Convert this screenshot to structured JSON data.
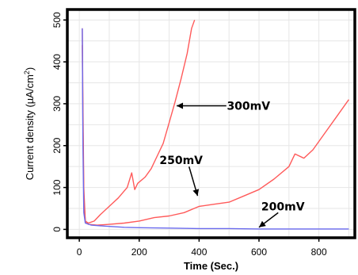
{
  "chart_data": {
    "type": "line",
    "title": "",
    "xlabel": "Time (Sec.)",
    "ylabel_main": "Current density (µA/cm",
    "ylabel_sup": "2",
    "ylabel_close": ")",
    "xlim": [
      -40,
      920
    ],
    "ylim": [
      -20,
      525
    ],
    "xticks": [
      0,
      200,
      400,
      600,
      800
    ],
    "yticks": [
      0,
      100,
      200,
      300,
      400,
      500
    ],
    "grid": true,
    "colors": {
      "red": "#ff5a5a",
      "blue": "#6a6aee",
      "frame": "#000000",
      "grid": "#e6e6e6"
    },
    "series": [
      {
        "name": "300mV",
        "color": "#ff5a5a",
        "x": [
          10,
          12,
          15,
          20,
          30,
          50,
          70,
          100,
          130,
          160,
          175,
          185,
          195,
          220,
          240,
          260,
          280,
          300,
          320,
          340,
          360,
          375,
          385
        ],
        "y": [
          480,
          300,
          100,
          20,
          15,
          20,
          35,
          55,
          75,
          100,
          135,
          95,
          110,
          125,
          145,
          175,
          205,
          255,
          305,
          360,
          420,
          480,
          500
        ]
      },
      {
        "name": "250mV",
        "color": "#ff5a5a",
        "x": [
          10,
          12,
          15,
          20,
          30,
          60,
          100,
          150,
          200,
          250,
          300,
          350,
          400,
          450,
          500,
          550,
          600,
          650,
          700,
          720,
          750,
          780,
          820,
          860,
          900
        ],
        "y": [
          440,
          250,
          80,
          20,
          12,
          10,
          12,
          15,
          20,
          28,
          32,
          40,
          55,
          60,
          65,
          80,
          95,
          120,
          150,
          180,
          170,
          190,
          230,
          270,
          310
        ]
      },
      {
        "name": "200mV",
        "color": "#6a6aee",
        "x": [
          10,
          12,
          15,
          20,
          40,
          80,
          150,
          200,
          300,
          400,
          500,
          600,
          700,
          800,
          900
        ],
        "y": [
          480,
          200,
          40,
          15,
          10,
          8,
          5,
          4,
          3,
          2,
          2,
          1,
          1,
          1,
          1
        ]
      }
    ],
    "annotations": [
      {
        "text": "300mV",
        "label_x": 565,
        "label_y": 295,
        "arrow_to_x": 325,
        "arrow_to_y": 295
      },
      {
        "text": "250mV",
        "label_x": 340,
        "label_y": 165,
        "arrow_to_x": 395,
        "arrow_to_y": 80
      },
      {
        "text": "200mV",
        "label_x": 680,
        "label_y": 55,
        "arrow_to_x": 600,
        "arrow_to_y": 5
      }
    ]
  }
}
